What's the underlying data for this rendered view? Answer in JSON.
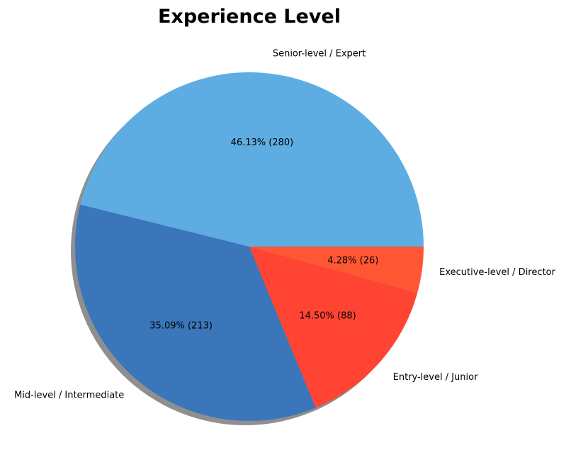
{
  "chart_data": {
    "type": "pie",
    "title": "Experience Level",
    "start_angle_deg": 0,
    "direction": "counterclockwise",
    "shadow": true,
    "slices": [
      {
        "label": "Senior-level / Expert",
        "value": 280,
        "percent_label": "46.13%  (280)",
        "color": "#5dade2"
      },
      {
        "label": "Mid-level / Intermediate",
        "value": 213,
        "percent_label": "35.09%  (213)",
        "color": "#3a76b9"
      },
      {
        "label": "Entry-level / Junior",
        "value": 88,
        "percent_label": "14.50%  (88)",
        "color": "#ff4433"
      },
      {
        "label": "Executive-level / Director",
        "value": 26,
        "percent_label": "4.28%  (26)",
        "color": "#ff5733"
      }
    ]
  }
}
